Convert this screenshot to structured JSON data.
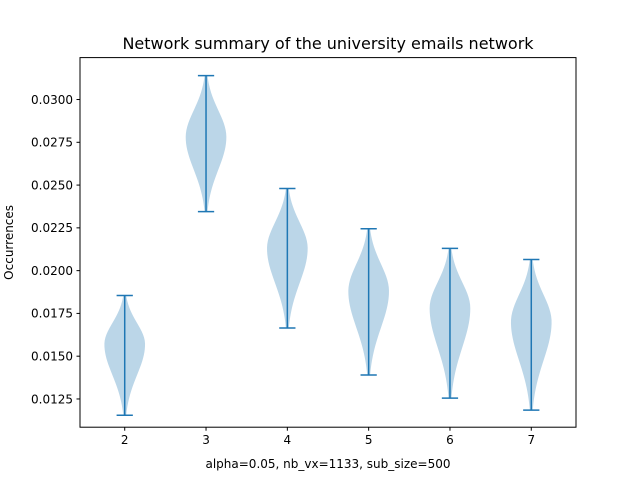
{
  "chart_data": {
    "type": "violin",
    "title": "Network summary of the university emails network",
    "xlabel": "alpha=0.05, nb_vx=1133, sub_size=500",
    "ylabel": "Occurrences",
    "xlim": [
      1.45,
      7.55
    ],
    "ylim": [
      0.01085,
      0.03245
    ],
    "x_ticks": [
      2,
      3,
      4,
      5,
      6,
      7
    ],
    "x_tick_labels": [
      "2",
      "3",
      "4",
      "5",
      "6",
      "7"
    ],
    "y_ticks": [
      0.0125,
      0.015,
      0.0175,
      0.02,
      0.0225,
      0.025,
      0.0275,
      0.03
    ],
    "y_tick_labels": [
      "0.0125",
      "0.0150",
      "0.0175",
      "0.0200",
      "0.0225",
      "0.0250",
      "0.0275",
      "0.0300"
    ],
    "grid": false,
    "colors": {
      "body": "#1f77b4",
      "body_opacity": 0.3,
      "lines": "#1f77b4"
    },
    "violins": [
      {
        "position": 2,
        "min": 0.01155,
        "max": 0.01855,
        "center": 0.0157
      },
      {
        "position": 3,
        "min": 0.02345,
        "max": 0.0314,
        "center": 0.0278
      },
      {
        "position": 4,
        "min": 0.01665,
        "max": 0.0248,
        "center": 0.0213
      },
      {
        "position": 5,
        "min": 0.0139,
        "max": 0.02245,
        "center": 0.0188
      },
      {
        "position": 6,
        "min": 0.01255,
        "max": 0.0213,
        "center": 0.0178
      },
      {
        "position": 7,
        "min": 0.01185,
        "max": 0.02065,
        "center": 0.017
      }
    ]
  }
}
